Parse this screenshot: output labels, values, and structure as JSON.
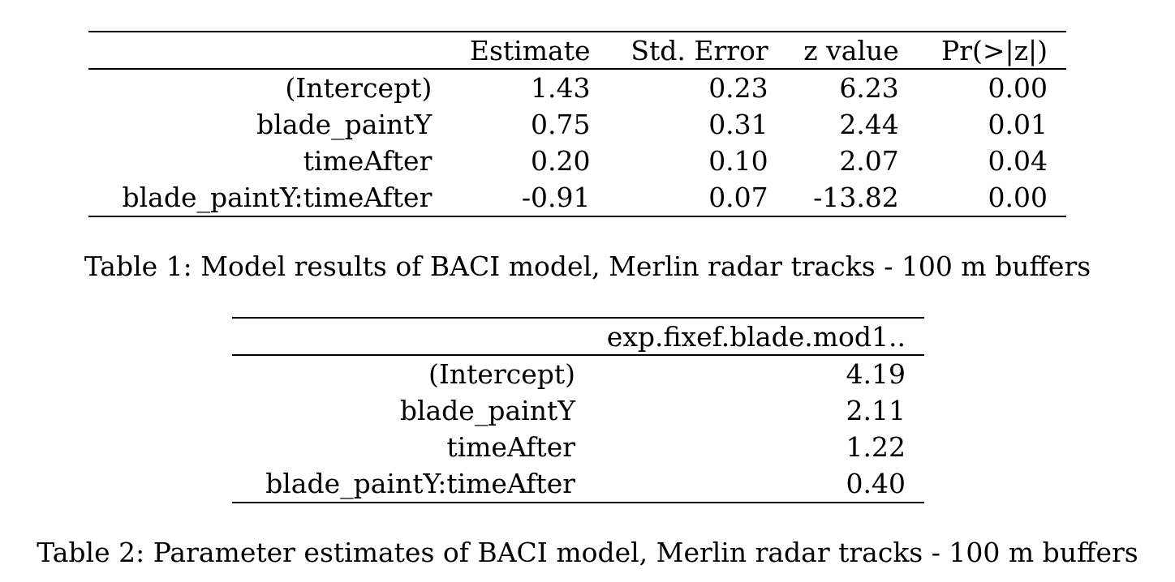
{
  "table1": {
    "columns": [
      "",
      "Estimate",
      "Std. Error",
      "z value",
      "Pr(>|z|)"
    ],
    "rows": [
      [
        "(Intercept)",
        "1.43",
        "0.23",
        "6.23",
        "0.00"
      ],
      [
        "blade_paintY",
        "0.75",
        "0.31",
        "2.44",
        "0.01"
      ],
      [
        "timeAfter",
        "0.20",
        "0.10",
        "2.07",
        "0.04"
      ],
      [
        "blade_paintY:timeAfter",
        "-0.91",
        "0.07",
        "-13.82",
        "0.00"
      ]
    ],
    "caption": "Table 1: Model results of BACI model, Merlin radar tracks - 100 m buffers"
  },
  "table2": {
    "columns": [
      "",
      "exp.fixef.blade.mod1.."
    ],
    "rows": [
      [
        "(Intercept)",
        "4.19"
      ],
      [
        "blade_paintY",
        "2.11"
      ],
      [
        "timeAfter",
        "1.22"
      ],
      [
        "blade_paintY:timeAfter",
        "0.40"
      ]
    ],
    "caption": "Table 2: Parameter estimates of BACI model, Merlin radar tracks - 100 m buffers"
  }
}
